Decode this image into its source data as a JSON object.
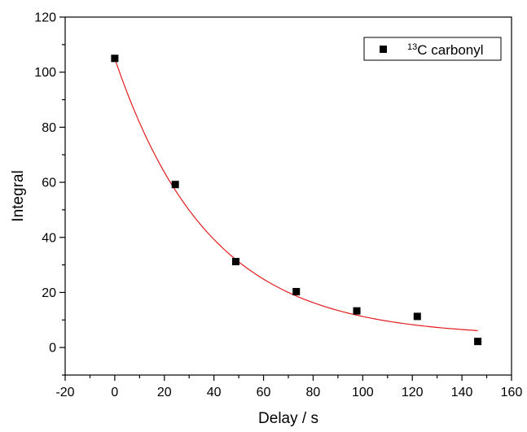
{
  "chart_data": {
    "type": "scatter",
    "xlabel": "Delay / s",
    "ylabel": "Integral",
    "xlim": [
      -20,
      160
    ],
    "ylim": [
      -10,
      120
    ],
    "x_ticks": [
      -20,
      0,
      20,
      40,
      60,
      80,
      100,
      120,
      140,
      160
    ],
    "y_ticks": [
      0,
      20,
      40,
      60,
      80,
      100,
      120
    ],
    "grid": false,
    "legend_position": "top-right",
    "series": [
      {
        "name": "carbonyl",
        "name_superscript": "13",
        "name_prefix": "C ",
        "marker": "square",
        "color": "#000000",
        "x": [
          0,
          24.4,
          48.8,
          73.2,
          97.6,
          122,
          146.4
        ],
        "y": [
          105,
          59.2,
          31.2,
          20.3,
          13.3,
          11.3,
          2.2
        ]
      }
    ],
    "fit": {
      "type": "exponential-decay",
      "color": "#e31a1c",
      "x_range": [
        0,
        146.4
      ],
      "params": {
        "y0": 4.0,
        "A": 101.0,
        "t": 38.0
      }
    }
  }
}
